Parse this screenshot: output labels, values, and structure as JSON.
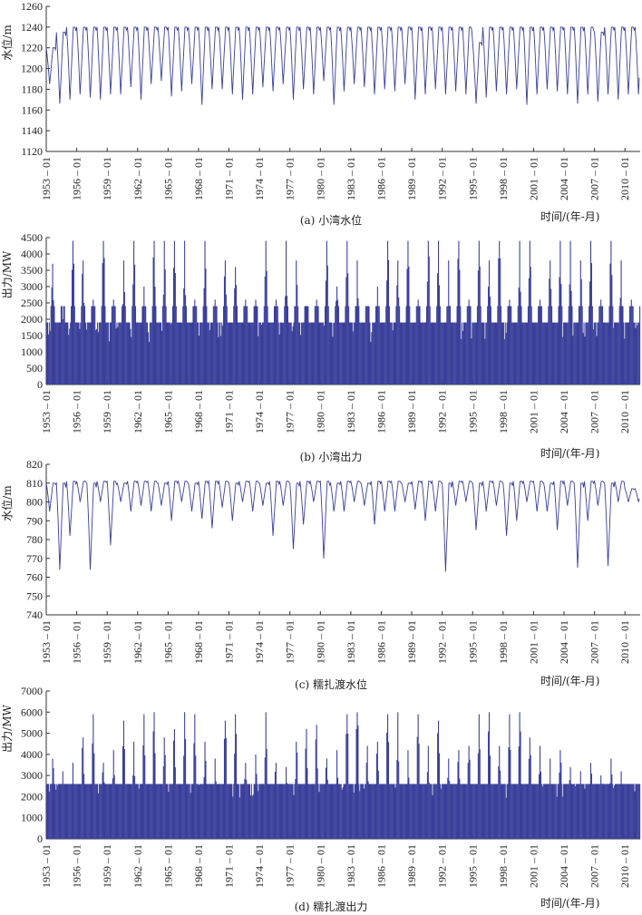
{
  "chart_data": [
    {
      "type": "line",
      "caption": "(a) 小湾水位",
      "ylabel": "水位/m",
      "xlabel": "时间/(年-月)",
      "ylim": [
        1120,
        1260
      ],
      "yticks": [
        1120,
        1140,
        1160,
        1180,
        1200,
        1220,
        1240,
        1260
      ],
      "xticks": [
        "1953-01",
        "1956-01",
        "1959-01",
        "1962-01",
        "1965-01",
        "1968-01",
        "1971-01",
        "1974-01",
        "1977-01",
        "1980-01",
        "1983-01",
        "1986-01",
        "1989-01",
        "1992-01",
        "1995-01",
        "1998-01",
        "2001-01",
        "2004-01",
        "2007-01",
        "2010-01"
      ],
      "xrange": [
        "1953-01",
        "2011-06"
      ],
      "series": [
        {
          "color": "#3a3f9a",
          "annual_max": [
            1220,
            1235,
            1240,
            1240,
            1240,
            1240,
            1240,
            1240,
            1240,
            1240,
            1240,
            1240,
            1240,
            1240,
            1240,
            1240,
            1240,
            1240,
            1240,
            1240,
            1240,
            1240,
            1240,
            1240,
            1240,
            1240,
            1240,
            1240,
            1240,
            1240,
            1240,
            1240,
            1240,
            1240,
            1240,
            1240,
            1240,
            1240,
            1240,
            1240,
            1240,
            1240,
            1225,
            1240,
            1240,
            1240,
            1240,
            1240,
            1240,
            1240,
            1240,
            1240,
            1240,
            1240,
            1235,
            1240,
            1240,
            1240
          ],
          "annual_min": [
            1185,
            1166,
            1170,
            1175,
            1172,
            1170,
            1175,
            1175,
            1182,
            1170,
            1185,
            1188,
            1173,
            1178,
            1185,
            1165,
            1180,
            1180,
            1175,
            1170,
            1175,
            1182,
            1178,
            1185,
            1170,
            1180,
            1175,
            1188,
            1165,
            1178,
            1185,
            1182,
            1175,
            1180,
            1178,
            1185,
            1170,
            1175,
            1180,
            1175,
            1178,
            1175,
            1166,
            1172,
            1178,
            1175,
            1180,
            1165,
            1175,
            1180,
            1178,
            1175,
            1166,
            1175,
            1168,
            1175,
            1170,
            1175
          ]
        }
      ]
    },
    {
      "type": "bar",
      "caption": "(b) 小湾出力",
      "ylabel": "出力/MW",
      "xlabel": "时间/(年-月)",
      "ylim": [
        0,
        4500
      ],
      "yticks": [
        0,
        500,
        1000,
        1500,
        2000,
        2500,
        3000,
        3500,
        4000,
        4500
      ],
      "xticks": [
        "1953-01",
        "1956-01",
        "1959-01",
        "1962-01",
        "1965-01",
        "1968-01",
        "1971-01",
        "1974-01",
        "1977-01",
        "1980-01",
        "1983-01",
        "1986-01",
        "1989-01",
        "1992-01",
        "1995-01",
        "1998-01",
        "2001-01",
        "2004-01",
        "2007-01",
        "2010-01"
      ],
      "xrange": [
        "1953-01",
        "2011-06"
      ],
      "series": [
        {
          "color": "#3a3f9a",
          "base": 1900,
          "flood_level": 2400,
          "floor": 1300,
          "annual_peak": [
            3700,
            2000,
            4400,
            3800,
            2600,
            4400,
            2600,
            3800,
            4400,
            3000,
            4400,
            4400,
            4400,
            4400,
            2600,
            4400,
            2600,
            3800,
            3600,
            2600,
            2600,
            4400,
            2600,
            4400,
            3800,
            2400,
            2600,
            4400,
            3000,
            4400,
            3800,
            2400,
            3000,
            4400,
            3800,
            4400,
            2600,
            4400,
            4400,
            3800,
            4400,
            2600,
            4400,
            3800,
            4400,
            2600,
            4400,
            4400,
            2600,
            3800,
            4400,
            4400,
            3800,
            4400,
            2600,
            4400,
            3800,
            2600
          ]
        }
      ]
    },
    {
      "type": "line",
      "caption": "(c) 糯扎渡水位",
      "ylabel": "水位/m",
      "xlabel": "时间/(年-月)",
      "ylim": [
        740,
        820
      ],
      "yticks": [
        740,
        750,
        760,
        770,
        780,
        790,
        800,
        810,
        820
      ],
      "xticks": [
        "1953-01",
        "1956-01",
        "1959-01",
        "1962-01",
        "1965-01",
        "1968-01",
        "1971-01",
        "1974-01",
        "1977-01",
        "1980-01",
        "1983-01",
        "1986-01",
        "1989-01",
        "1992-01",
        "1995-01",
        "1998-01",
        "2001-01",
        "2004-01",
        "2007-01",
        "2010-01"
      ],
      "xrange": [
        "1953-01",
        "2011-06"
      ],
      "series": [
        {
          "color": "#3a3f9a",
          "annual_max": [
            810,
            810,
            811,
            811,
            810,
            811,
            811,
            810,
            811,
            811,
            811,
            810,
            811,
            811,
            810,
            811,
            811,
            811,
            810,
            811,
            811,
            810,
            811,
            811,
            810,
            811,
            811,
            811,
            810,
            811,
            811,
            810,
            811,
            811,
            811,
            810,
            811,
            811,
            811,
            810,
            811,
            811,
            810,
            811,
            811,
            810,
            811,
            811,
            811,
            810,
            811,
            811,
            810,
            811,
            811,
            810,
            811,
            807
          ],
          "annual_min": [
            795,
            764,
            782,
            800,
            764,
            800,
            777,
            800,
            795,
            798,
            795,
            798,
            790,
            800,
            795,
            791,
            786,
            797,
            790,
            800,
            795,
            798,
            782,
            798,
            775,
            788,
            800,
            770,
            795,
            795,
            800,
            798,
            788,
            795,
            795,
            800,
            796,
            790,
            795,
            763,
            798,
            800,
            785,
            795,
            798,
            782,
            790,
            800,
            795,
            795,
            785,
            798,
            765,
            790,
            798,
            766,
            800,
            800
          ]
        }
      ]
    },
    {
      "type": "bar",
      "caption": "(d) 糯扎渡出力",
      "ylabel": "出力/MW",
      "xlabel": "时间/(年-月)",
      "ylim": [
        0,
        7000
      ],
      "yticks": [
        0,
        1000,
        2000,
        3000,
        4000,
        5000,
        6000,
        7000
      ],
      "xticks": [
        "1953-01",
        "1956-01",
        "1959-01",
        "1962-01",
        "1965-01",
        "1968-01",
        "1971-01",
        "1974-01",
        "1977-01",
        "1980-01",
        "1983-01",
        "1986-01",
        "1989-01",
        "1992-01",
        "1995-01",
        "1998-01",
        "2001-01",
        "2004-01",
        "2007-01",
        "2010-01"
      ],
      "xrange": [
        "1953-01",
        "2011-06"
      ],
      "series": [
        {
          "color": "#3a3f9a",
          "base": 2600,
          "flood_level": 2600,
          "floor": 1900,
          "annual_peak": [
            3800,
            3200,
            3600,
            4800,
            5900,
            3600,
            4200,
            5600,
            4600,
            5900,
            6000,
            4800,
            5200,
            6000,
            5900,
            4600,
            3800,
            5600,
            5900,
            3600,
            4000,
            6000,
            3600,
            3400,
            4600,
            5200,
            5400,
            3800,
            4200,
            5900,
            6000,
            4400,
            4600,
            5900,
            6000,
            4200,
            5900,
            4400,
            5600,
            3800,
            4200,
            4400,
            5900,
            6000,
            4400,
            5900,
            6000,
            4800,
            4400,
            3800,
            4200,
            3400,
            3200,
            3600,
            3000,
            3800,
            3200,
            2600
          ]
        }
      ]
    }
  ]
}
